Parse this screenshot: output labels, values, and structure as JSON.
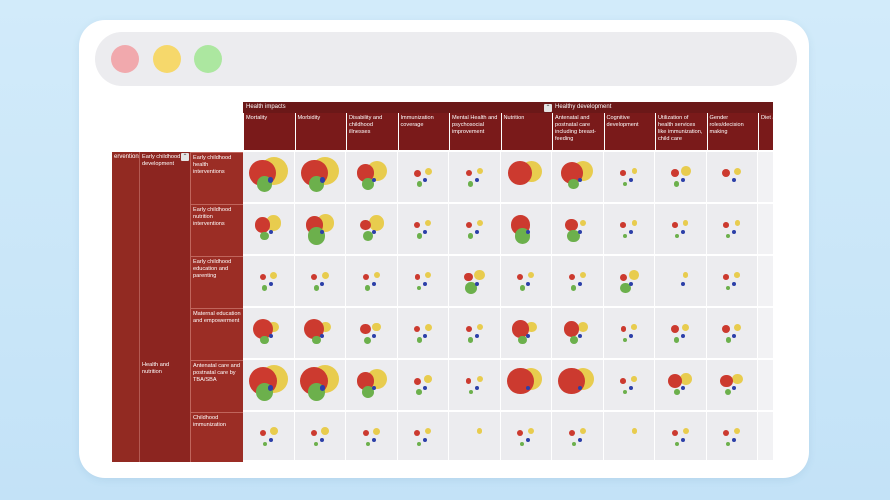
{
  "window": {
    "controls": [
      "close-dot",
      "minimize-dot",
      "maximize-dot"
    ]
  },
  "colors": {
    "header_dark": "#6b1818",
    "header": "#7a1a1a",
    "row_header": "#922a22",
    "cell_bg": "#ececef",
    "bubble_red": "#cc3a2f",
    "bubble_yellow": "#e8cc4e",
    "bubble_green": "#6cb04c",
    "bubble_blue": "#2c3fa8"
  },
  "matrix": {
    "column_groups": [
      {
        "label": "Health impacts"
      },
      {
        "label": "Healthy development"
      }
    ],
    "collapse_glyph": "⌃",
    "columns": [
      "Mortality",
      "Morbidity",
      "Disability and childhood illnesses",
      "Immunization coverage",
      "Mental Health and psychosocial improvement",
      "Nutrition",
      "Antenatal and postnatal care including breast-feeding",
      "Cognitive development",
      "Utilization of health services like immunization, child care",
      "Gender roles/decision making",
      "Diet activ"
    ],
    "row_level1": "erventions",
    "row_groups": [
      {
        "label": "Early childhood development"
      },
      {
        "label": "Health and nutrition"
      }
    ],
    "rows": [
      {
        "label": "Early childhood health interventions",
        "cells": [
          [
            0.95,
            1.0,
            0.55,
            0.18
          ],
          [
            0.95,
            1.0,
            0.55,
            0.18
          ],
          [
            0.62,
            0.72,
            0.42,
            0.15
          ],
          [
            0.25,
            0.25,
            0.18,
            0.15
          ],
          [
            0.22,
            0.22,
            0.18,
            0.15
          ],
          [
            0.85,
            0.75,
            0.0,
            0.0
          ],
          [
            0.78,
            0.72,
            0.38,
            0.15
          ],
          [
            0.2,
            0.18,
            0.15,
            0.15
          ],
          [
            0.28,
            0.35,
            0.18,
            0.15
          ],
          [
            0.3,
            0.25,
            0.0,
            0.15
          ],
          [
            0,
            0,
            0,
            0
          ]
        ]
      },
      {
        "label": "Early childhood nutrition interventions",
        "cells": [
          [
            0.55,
            0.55,
            0.32,
            0.15
          ],
          [
            0.62,
            0.62,
            0.62,
            0.15
          ],
          [
            0.38,
            0.55,
            0.35,
            0.15
          ],
          [
            0.22,
            0.22,
            0.18,
            0.15
          ],
          [
            0.22,
            0.22,
            0.18,
            0.15
          ],
          [
            0.68,
            0.0,
            0.55,
            0.15
          ],
          [
            0.45,
            0.22,
            0.45,
            0.15
          ],
          [
            0.2,
            0.18,
            0.15,
            0.15
          ],
          [
            0.2,
            0.18,
            0.15,
            0.15
          ],
          [
            0.2,
            0.18,
            0.15,
            0.15
          ],
          [
            0,
            0,
            0,
            0
          ]
        ]
      },
      {
        "label": "Early childhood education and parenting",
        "cells": [
          [
            0.22,
            0.25,
            0.18,
            0.15
          ],
          [
            0.22,
            0.25,
            0.18,
            0.15
          ],
          [
            0.22,
            0.22,
            0.18,
            0.15
          ],
          [
            0.18,
            0.22,
            0.15,
            0.15
          ],
          [
            0.32,
            0.38,
            0.42,
            0.15
          ],
          [
            0.22,
            0.22,
            0.18,
            0.15
          ],
          [
            0.22,
            0.22,
            0.18,
            0.15
          ],
          [
            0.25,
            0.35,
            0.38,
            0.15
          ],
          [
            0.0,
            0.18,
            0.0,
            0.15
          ],
          [
            0.2,
            0.2,
            0.15,
            0.15
          ],
          [
            0,
            0,
            0,
            0
          ]
        ]
      },
      {
        "label": "Maternal education and empowerment",
        "cells": [
          [
            0.72,
            0.38,
            0.32,
            0.15
          ],
          [
            0.72,
            0.38,
            0.32,
            0.15
          ],
          [
            0.38,
            0.32,
            0.25,
            0.15
          ],
          [
            0.22,
            0.25,
            0.18,
            0.15
          ],
          [
            0.22,
            0.22,
            0.18,
            0.15
          ],
          [
            0.62,
            0.38,
            0.32,
            0.15
          ],
          [
            0.55,
            0.35,
            0.28,
            0.15
          ],
          [
            0.18,
            0.2,
            0.15,
            0.15
          ],
          [
            0.3,
            0.25,
            0.18,
            0.15
          ],
          [
            0.3,
            0.25,
            0.18,
            0.15
          ],
          [
            0,
            0,
            0,
            0
          ]
        ]
      },
      {
        "label": "Antenatal care and postnatal care by TBA/SBA",
        "cells": [
          [
            1.0,
            1.0,
            0.62,
            0.18
          ],
          [
            1.0,
            1.0,
            0.62,
            0.18
          ],
          [
            0.62,
            0.72,
            0.42,
            0.15
          ],
          [
            0.25,
            0.28,
            0.2,
            0.15
          ],
          [
            0.18,
            0.22,
            0.15,
            0.15
          ],
          [
            0.95,
            0.8,
            0.0,
            0.15
          ],
          [
            0.95,
            0.8,
            0.0,
            0.15
          ],
          [
            0.2,
            0.2,
            0.15,
            0.15
          ],
          [
            0.5,
            0.42,
            0.2,
            0.15
          ],
          [
            0.45,
            0.38,
            0.22,
            0.15
          ],
          [
            0,
            0,
            0,
            0
          ]
        ]
      },
      {
        "label": "Childhood immunization",
        "cells": [
          [
            0.22,
            0.28,
            0.15,
            0.15
          ],
          [
            0.22,
            0.28,
            0.15,
            0.15
          ],
          [
            0.22,
            0.25,
            0.15,
            0.15
          ],
          [
            0.22,
            0.22,
            0.15,
            0.15
          ],
          [
            0.0,
            0.18,
            0.0,
            0.0
          ],
          [
            0.22,
            0.22,
            0.15,
            0.15
          ],
          [
            0.22,
            0.22,
            0.15,
            0.15
          ],
          [
            0.0,
            0.18,
            0.0,
            0.0
          ],
          [
            0.22,
            0.22,
            0.15,
            0.15
          ],
          [
            0.22,
            0.22,
            0.15,
            0.15
          ],
          [
            0,
            0,
            0,
            0
          ]
        ]
      }
    ]
  }
}
